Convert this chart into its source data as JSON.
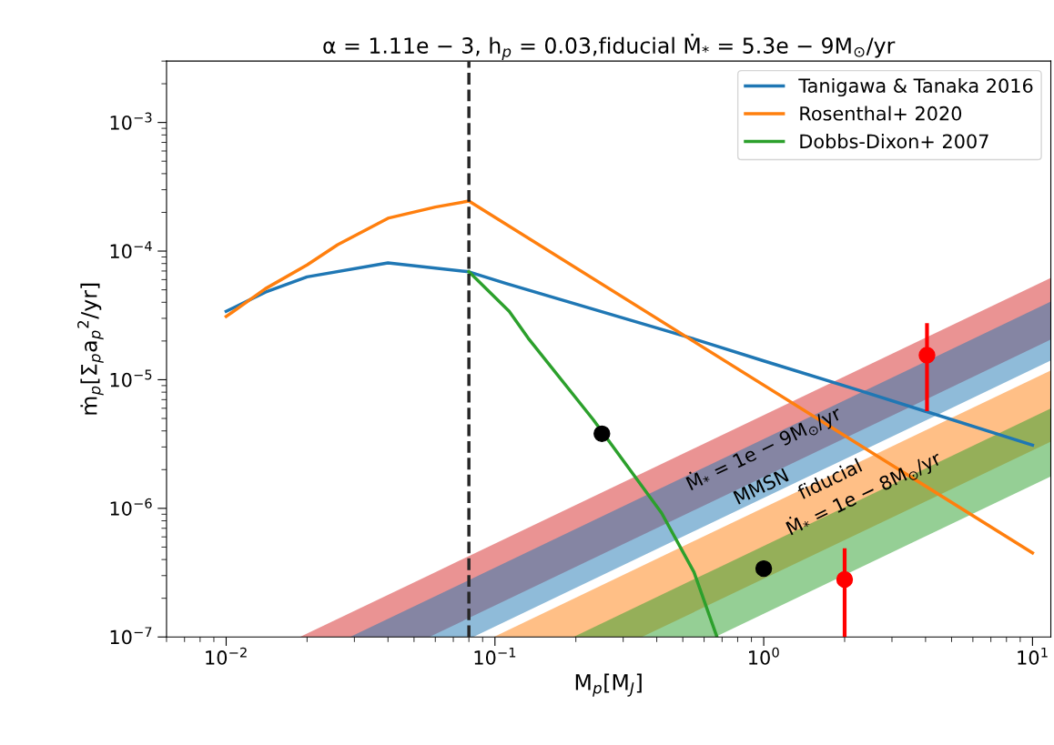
{
  "chart_data": {
    "type": "line",
    "title": "α = 1.11e − 3, h$_{p}$ = 0.03,fiducial Ṁ$_{*}$ = 5.3e − 9M$_{⊙}$/yr",
    "xlabel": "M$_{p}$[M$_{J}$]",
    "ylabel": "ṁ$_{p}$[Σ$_{p}$a$_{p}$$^{2}$/yr]",
    "log": "xy",
    "xlim": [
      0.006,
      11.7
    ],
    "ylim": [
      1e-07,
      0.003
    ],
    "xticks": [
      {
        "value": 0.01,
        "label": "10$^{−2}$"
      },
      {
        "value": 0.1,
        "label": "10$^{−1}$"
      },
      {
        "value": 1,
        "label": "10$^{0}$"
      },
      {
        "value": 10,
        "label": "10$^{1}$"
      }
    ],
    "yticks": [
      {
        "value": 1e-07,
        "label": "10$^{−7}$"
      },
      {
        "value": 1e-06,
        "label": "10$^{−6}$"
      },
      {
        "value": 1e-05,
        "label": "10$^{−5}$"
      },
      {
        "value": 0.0001,
        "label": "10$^{−4}$"
      },
      {
        "value": 0.001,
        "label": "10$^{−3}$"
      }
    ],
    "grid": false,
    "legend": "top right",
    "series": [
      {
        "type": "line",
        "color": "#d62728",
        "x": [
          0.0188,
          0.057,
          11.7
        ],
        "values": [
          null,
          null,
          null
        ],
        "lower": [
          1e-07,
          1e-07,
          2.05e-05
        ],
        "upper": [
          1e-07,
          3.03e-07,
          6.2e-05
        ]
      },
      {
        "type": "line",
        "color": "#1f77b4",
        "x": [
          0.0289,
          0.083,
          11.7
        ],
        "values": [
          null,
          null,
          null
        ],
        "lower": [
          1e-07,
          1e-07,
          1.41e-05
        ],
        "upper": [
          1e-07,
          2.87e-07,
          4.05e-05
        ]
      },
      {
        "type": "line",
        "color": "#ff7f0e",
        "x": [
          0.099,
          0.352,
          11.7
        ],
        "values": [
          null,
          null,
          null
        ],
        "lower": [
          1e-07,
          1e-07,
          3.3e-06
        ],
        "upper": [
          1e-07,
          3.56e-07,
          1.18e-05
        ]
      },
      {
        "type": "line",
        "color": "#2ca02c",
        "x": [
          0.196,
          0.66,
          11.7
        ],
        "values": [
          null,
          null,
          null
        ],
        "lower": [
          1e-07,
          1e-07,
          1.77e-06
        ],
        "upper": [
          1e-07,
          3.37e-07,
          5.97e-06
        ]
      },
      {
        "type": "line",
        "name": "Tanigawa & Tanaka 2016",
        "color": "#1f77b4",
        "x": [
          0.01,
          0.014,
          0.02,
          0.04,
          0.08,
          0.11,
          0.54,
          1,
          2.25,
          10
        ],
        "values": [
          3.4e-05,
          4.8e-05,
          6.3e-05,
          8.1e-05,
          6.9e-05,
          5.6e-05,
          2.1e-05,
          1.4e-05,
          8.3e-06,
          3.1e-06
        ]
      },
      {
        "type": "line",
        "name": "Rosenthal+ 2020",
        "color": "#ff7f0e",
        "x": [
          0.01,
          0.014,
          0.02,
          0.026,
          0.04,
          0.06,
          0.08,
          10
        ],
        "values": [
          3.1e-05,
          5.1e-05,
          7.8e-05,
          0.000112,
          0.00018,
          0.00022,
          0.000245,
          4.5e-07
        ]
      },
      {
        "type": "line",
        "name": "Dobbs-Dixon+ 2007",
        "color": "#2ca02c",
        "x": [
          0.08,
          0.113,
          0.133,
          0.232,
          0.417,
          0.55,
          0.67
        ],
        "values": [
          6.9e-05,
          3.4e-05,
          2.1e-05,
          4.9e-06,
          9.2e-07,
          3.2e-07,
          1e-07
        ]
      },
      {
        "type": "scatter",
        "color": "#000000",
        "marker": "circle",
        "x": [
          0.25,
          1
        ],
        "values": [
          3.8e-06,
          3.4e-07
        ]
      },
      {
        "type": "scatter",
        "color": "#ff0000",
        "marker": "circle",
        "x": [
          2,
          4.05
        ],
        "values": [
          2.8e-07,
          1.55e-05
        ],
        "errors": [
          [
            1e-07,
            4.9e-07
          ],
          [
            5.7e-06,
            2.75e-05
          ]
        ]
      }
    ],
    "ref_lines": [
      {
        "axis": "x",
        "value": 0.08,
        "color": "#262626",
        "line_style": "dashed"
      }
    ],
    "annotations": [
      "Ṁ$_{*}$ = 1e − 9M$_{⊙}$/yr",
      "MMSN",
      "fiducial",
      "Ṁ$_{*}$ = 1e − 8M$_{⊙}$/yr"
    ]
  }
}
